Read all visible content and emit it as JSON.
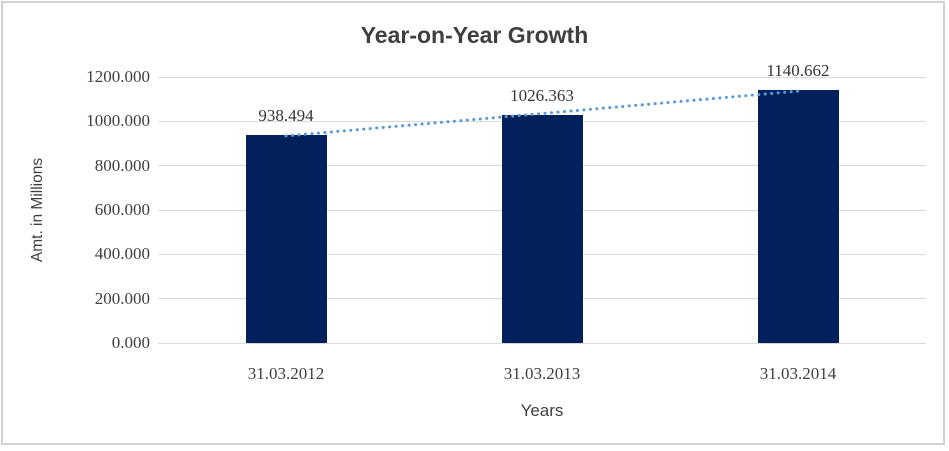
{
  "chart_data": {
    "type": "bar",
    "title": "Year-on-Year Growth",
    "xlabel": "Years",
    "ylabel": "Amt. in Millions",
    "categories": [
      "31.03.2012",
      "31.03.2013",
      "31.03.2014"
    ],
    "values": [
      938.494,
      1026.363,
      1140.662
    ],
    "data_labels": [
      "938.494",
      "1026.363",
      "1140.662"
    ],
    "ylim": [
      0,
      1200
    ],
    "ytick_labels": [
      "0.000",
      "200.000",
      "400.000",
      "600.000",
      "800.000",
      "1000.000",
      "1200.000"
    ],
    "grid": true,
    "legend": "none",
    "trendline": {
      "style": "dotted",
      "color": "#5b9bd5"
    },
    "colors": {
      "bar": "#02215c",
      "gridline": "#d9d9d9",
      "text": "#3f3f3f",
      "frame_border": "#d2d2d2",
      "background": "#ffffff"
    }
  }
}
